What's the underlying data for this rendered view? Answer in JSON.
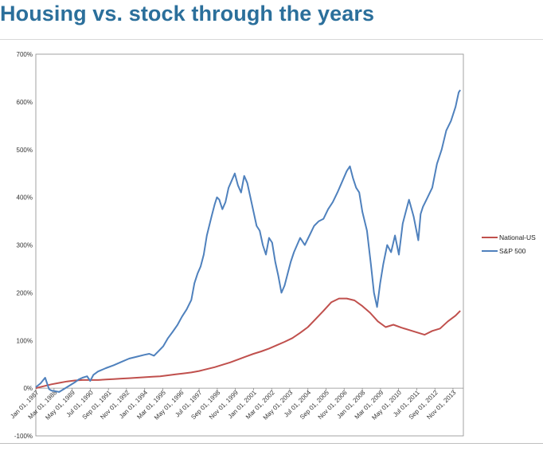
{
  "title": "Housing vs. stock through the years",
  "chart_data": {
    "type": "line",
    "title": "",
    "xlabel": "",
    "ylabel": "",
    "ylim": [
      -100,
      700
    ],
    "yticks": [
      "-100%",
      "0%",
      "100%",
      "200%",
      "300%",
      "400%",
      "500%",
      "600%",
      "700%"
    ],
    "ytick_values": [
      -100,
      0,
      100,
      200,
      300,
      400,
      500,
      600,
      700
    ],
    "xlim": [
      1987.0,
      2014.5
    ],
    "xtick_labels": [
      "Jan 01, 1987",
      "Mar 01, 1988",
      "May 01, 1989",
      "Jul 01, 1990",
      "Sep 01, 1991",
      "Nov 01, 1992",
      "Jan 01, 1994",
      "Mar 01, 1995",
      "May 01, 1996",
      "Jul 01, 1997",
      "Sep 01, 1998",
      "Nov 01, 1999",
      "Jan 01, 2001",
      "Mar 01, 2002",
      "May 01, 2003",
      "Jul 01, 2004",
      "Sep 01, 2005",
      "Nov 01, 2006",
      "Jan 01, 2008",
      "Mar 01, 2009",
      "May 01, 2010",
      "Jul 01, 2011",
      "Sep 01, 2012",
      "Nov 01, 2013"
    ],
    "xtick_values": [
      1987.0,
      1988.17,
      1989.33,
      1990.5,
      1991.67,
      1992.83,
      1994.0,
      1995.17,
      1996.33,
      1997.5,
      1998.67,
      1999.83,
      2001.0,
      2002.17,
      2003.33,
      2004.5,
      2005.67,
      2006.83,
      2008.0,
      2009.17,
      2010.33,
      2011.5,
      2012.67,
      2013.83
    ],
    "grid": false,
    "legend_position": "right",
    "series": [
      {
        "name": "National-US",
        "color": "#c0504d",
        "x": [
          1987.0,
          1987.5,
          1988.0,
          1988.5,
          1989.0,
          1989.5,
          1990.0,
          1990.5,
          1991.0,
          1991.5,
          1992.0,
          1992.5,
          1993.0,
          1993.5,
          1994.0,
          1994.5,
          1995.0,
          1995.5,
          1996.0,
          1996.5,
          1997.0,
          1997.5,
          1998.0,
          1998.5,
          1999.0,
          1999.5,
          2000.0,
          2000.5,
          2001.0,
          2001.5,
          2002.0,
          2002.5,
          2003.0,
          2003.5,
          2004.0,
          2004.5,
          2005.0,
          2005.5,
          2006.0,
          2006.5,
          2007.0,
          2007.5,
          2008.0,
          2008.5,
          2009.0,
          2009.5,
          2010.0,
          2010.5,
          2011.0,
          2011.5,
          2012.0,
          2012.5,
          2013.0,
          2013.5,
          2014.0,
          2014.3
        ],
        "values": [
          0,
          4,
          8,
          11,
          14,
          16,
          17,
          17,
          17,
          18,
          19,
          20,
          21,
          22,
          23,
          24,
          25,
          27,
          29,
          31,
          33,
          36,
          40,
          44,
          49,
          54,
          60,
          66,
          72,
          77,
          83,
          90,
          97,
          105,
          116,
          128,
          145,
          162,
          180,
          188,
          188,
          184,
          172,
          158,
          140,
          128,
          133,
          127,
          122,
          117,
          112,
          120,
          125,
          140,
          152,
          162
        ]
      },
      {
        "name": "S&P 500",
        "color": "#4f81bd",
        "x": [
          1987.0,
          1987.3,
          1987.6,
          1987.85,
          1988.0,
          1988.5,
          1989.0,
          1989.5,
          1989.75,
          1990.0,
          1990.3,
          1990.5,
          1990.7,
          1991.0,
          1991.5,
          1992.0,
          1992.5,
          1993.0,
          1993.5,
          1994.0,
          1994.3,
          1994.6,
          1994.9,
          1995.2,
          1995.5,
          1995.8,
          1996.1,
          1996.4,
          1996.7,
          1997.0,
          1997.2,
          1997.4,
          1997.6,
          1997.8,
          1998.0,
          1998.3,
          1998.5,
          1998.65,
          1998.8,
          1999.0,
          1999.2,
          1999.4,
          1999.6,
          1999.8,
          2000.0,
          2000.2,
          2000.4,
          2000.6,
          2000.8,
          2001.0,
          2001.2,
          2001.4,
          2001.6,
          2001.8,
          2002.0,
          2002.2,
          2002.4,
          2002.6,
          2002.8,
          2003.0,
          2003.2,
          2003.4,
          2003.6,
          2003.8,
          2004.0,
          2004.3,
          2004.6,
          2004.9,
          2005.2,
          2005.5,
          2005.8,
          2006.1,
          2006.4,
          2006.6,
          2006.8,
          2007.0,
          2007.2,
          2007.4,
          2007.6,
          2007.8,
          2008.0,
          2008.3,
          2008.55,
          2008.75,
          2008.95,
          2009.15,
          2009.35,
          2009.6,
          2009.85,
          2010.1,
          2010.35,
          2010.6,
          2010.8,
          2011.0,
          2011.3,
          2011.6,
          2011.75,
          2011.9,
          2012.2,
          2012.5,
          2012.8,
          2013.1,
          2013.4,
          2013.7,
          2014.0,
          2014.2,
          2014.3
        ],
        "values": [
          2,
          10,
          22,
          -2,
          -5,
          -8,
          2,
          12,
          18,
          22,
          25,
          15,
          28,
          35,
          42,
          48,
          55,
          62,
          66,
          70,
          72,
          68,
          78,
          88,
          105,
          118,
          132,
          150,
          165,
          185,
          220,
          240,
          255,
          280,
          320,
          360,
          385,
          400,
          395,
          375,
          390,
          420,
          435,
          450,
          425,
          410,
          445,
          430,
          400,
          370,
          340,
          330,
          300,
          280,
          315,
          305,
          265,
          235,
          200,
          215,
          240,
          265,
          285,
          300,
          315,
          300,
          320,
          340,
          350,
          355,
          375,
          390,
          410,
          425,
          440,
          455,
          465,
          440,
          420,
          410,
          370,
          330,
          260,
          200,
          170,
          220,
          260,
          300,
          285,
          320,
          280,
          345,
          370,
          395,
          360,
          310,
          365,
          380,
          400,
          420,
          470,
          500,
          540,
          560,
          590,
          620,
          625
        ]
      }
    ]
  }
}
